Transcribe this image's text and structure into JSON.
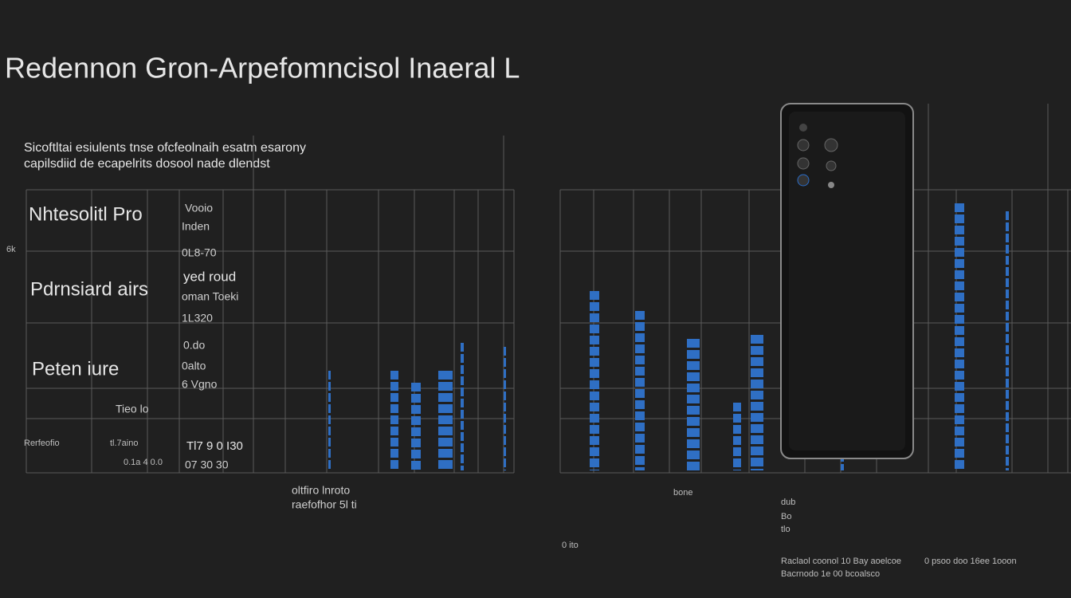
{
  "header": {
    "title": "Redennon Gron-Arpefomncisol Inaeral L"
  },
  "subtitle": [
    "Sicoftltai esiulents tnse ofcfeolnaih esatm esarony",
    "capilsdiid de ecapelrits dosool nade dlendst"
  ],
  "side_label": "6k",
  "left_panel": {
    "labels": [
      "Nhtesolitl Pro",
      "Pdrnsiard airs",
      "Peten iure"
    ],
    "notes": [
      "Vooio",
      "Inden",
      "0L8-70",
      "yed roud",
      "oman Toeki",
      "1L320",
      "0.do",
      "0alto",
      "6 Vgno",
      "Tieo lo",
      "Rerfeofio",
      "tl.7aino",
      "0.1a 4 0.0",
      "Tl7 9 0 I30",
      "07 30 30"
    ],
    "footer": [
      "oltfiro lnroto",
      "raefofhor 5l ti"
    ]
  },
  "right_panel": {
    "notes": [
      "bone",
      "dub",
      "Bo",
      "tlo",
      "0 ito"
    ],
    "footer": [
      "Raclaol coonol 10 Bay aoelcoe",
      "Bacrnodo 1e 00 bcoalsco",
      "0 psoo doo 16ee 1ooon"
    ]
  }
}
